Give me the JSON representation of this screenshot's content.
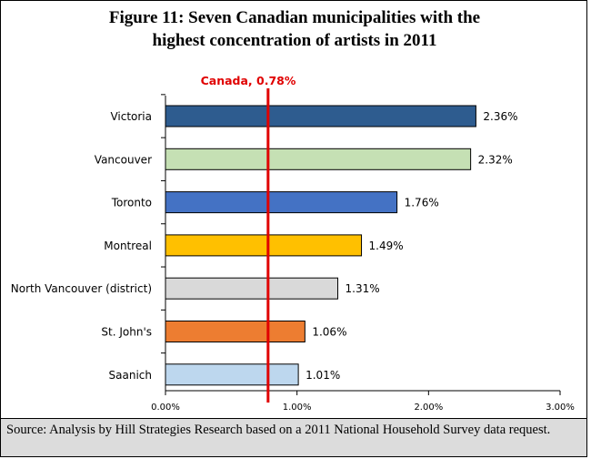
{
  "title_line1": "Figure 11: Seven Canadian municipalities with the",
  "title_line2": "highest concentration of artists in 2011",
  "source_note": "Source: Analysis by Hill Strategies Research based on a 2011 National Household Survey data request.",
  "chart_data": {
    "type": "bar",
    "orientation": "horizontal",
    "categories": [
      "Victoria",
      "Vancouver",
      "Toronto",
      "Montreal",
      "North Vancouver (district)",
      "St. John's",
      "Saanich"
    ],
    "values": [
      2.36,
      2.32,
      1.76,
      1.49,
      1.31,
      1.06,
      1.01
    ],
    "value_labels": [
      "2.36%",
      "2.32%",
      "1.76%",
      "1.49%",
      "1.31%",
      "1.06%",
      "1.01%"
    ],
    "bar_colors": [
      "#2e5c8f",
      "#c5e0b4",
      "#4472c4",
      "#ffc000",
      "#d9d9d9",
      "#ed7d31",
      "#bdd7ee"
    ],
    "xlim": [
      0,
      3
    ],
    "x_ticks": [
      0,
      1,
      2,
      3
    ],
    "x_tick_labels": [
      "0.00%",
      "1.00%",
      "2.00%",
      "3.00%"
    ],
    "grid": false,
    "reference_line": {
      "value": 0.78,
      "label": "Canada, 0.78%",
      "color": "#e00000"
    }
  }
}
